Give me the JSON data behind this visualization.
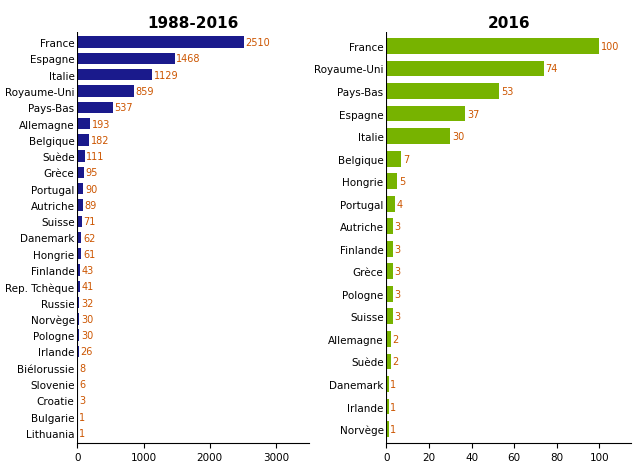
{
  "left": {
    "title": "1988-2016",
    "categories": [
      "France",
      "Espagne",
      "Italie",
      "Royaume-Uni",
      "Pays-Bas",
      "Allemagne",
      "Belgique",
      "Suède",
      "Grèce",
      "Portugal",
      "Autriche",
      "Suisse",
      "Danemark",
      "Hongrie",
      "Finlande",
      "Rep. Tchèque",
      "Russie",
      "Norvège",
      "Pologne",
      "Irlande",
      "Biélorussie",
      "Slovenie",
      "Croatie",
      "Bulgarie",
      "Lithuania"
    ],
    "values": [
      2510,
      1468,
      1129,
      859,
      537,
      193,
      182,
      111,
      95,
      90,
      89,
      71,
      62,
      61,
      43,
      41,
      32,
      30,
      30,
      26,
      8,
      6,
      3,
      1,
      1
    ],
    "bar_color": "#1a1a8c",
    "xlim": [
      0,
      3500
    ],
    "xticks": [
      0,
      1000,
      2000,
      3000
    ]
  },
  "right": {
    "title": "2016",
    "categories": [
      "France",
      "Royaume-Uni",
      "Pays-Bas",
      "Espagne",
      "Italie",
      "Belgique",
      "Hongrie",
      "Portugal",
      "Autriche",
      "Finlande",
      "Grèce",
      "Pologne",
      "Suisse",
      "Allemagne",
      "Suède",
      "Danemark",
      "Irlande",
      "Norvège"
    ],
    "values": [
      100,
      74,
      53,
      37,
      30,
      7,
      5,
      4,
      3,
      3,
      3,
      3,
      3,
      2,
      2,
      1,
      1,
      1
    ],
    "bar_color": "#77b300",
    "xlim": [
      0,
      115
    ],
    "xticks": [
      0,
      20,
      40,
      60,
      80,
      100
    ]
  },
  "label_color": "#cc5500",
  "title_fontsize": 11,
  "label_fontsize": 7.5,
  "value_fontsize": 7,
  "tick_fontsize": 7.5
}
